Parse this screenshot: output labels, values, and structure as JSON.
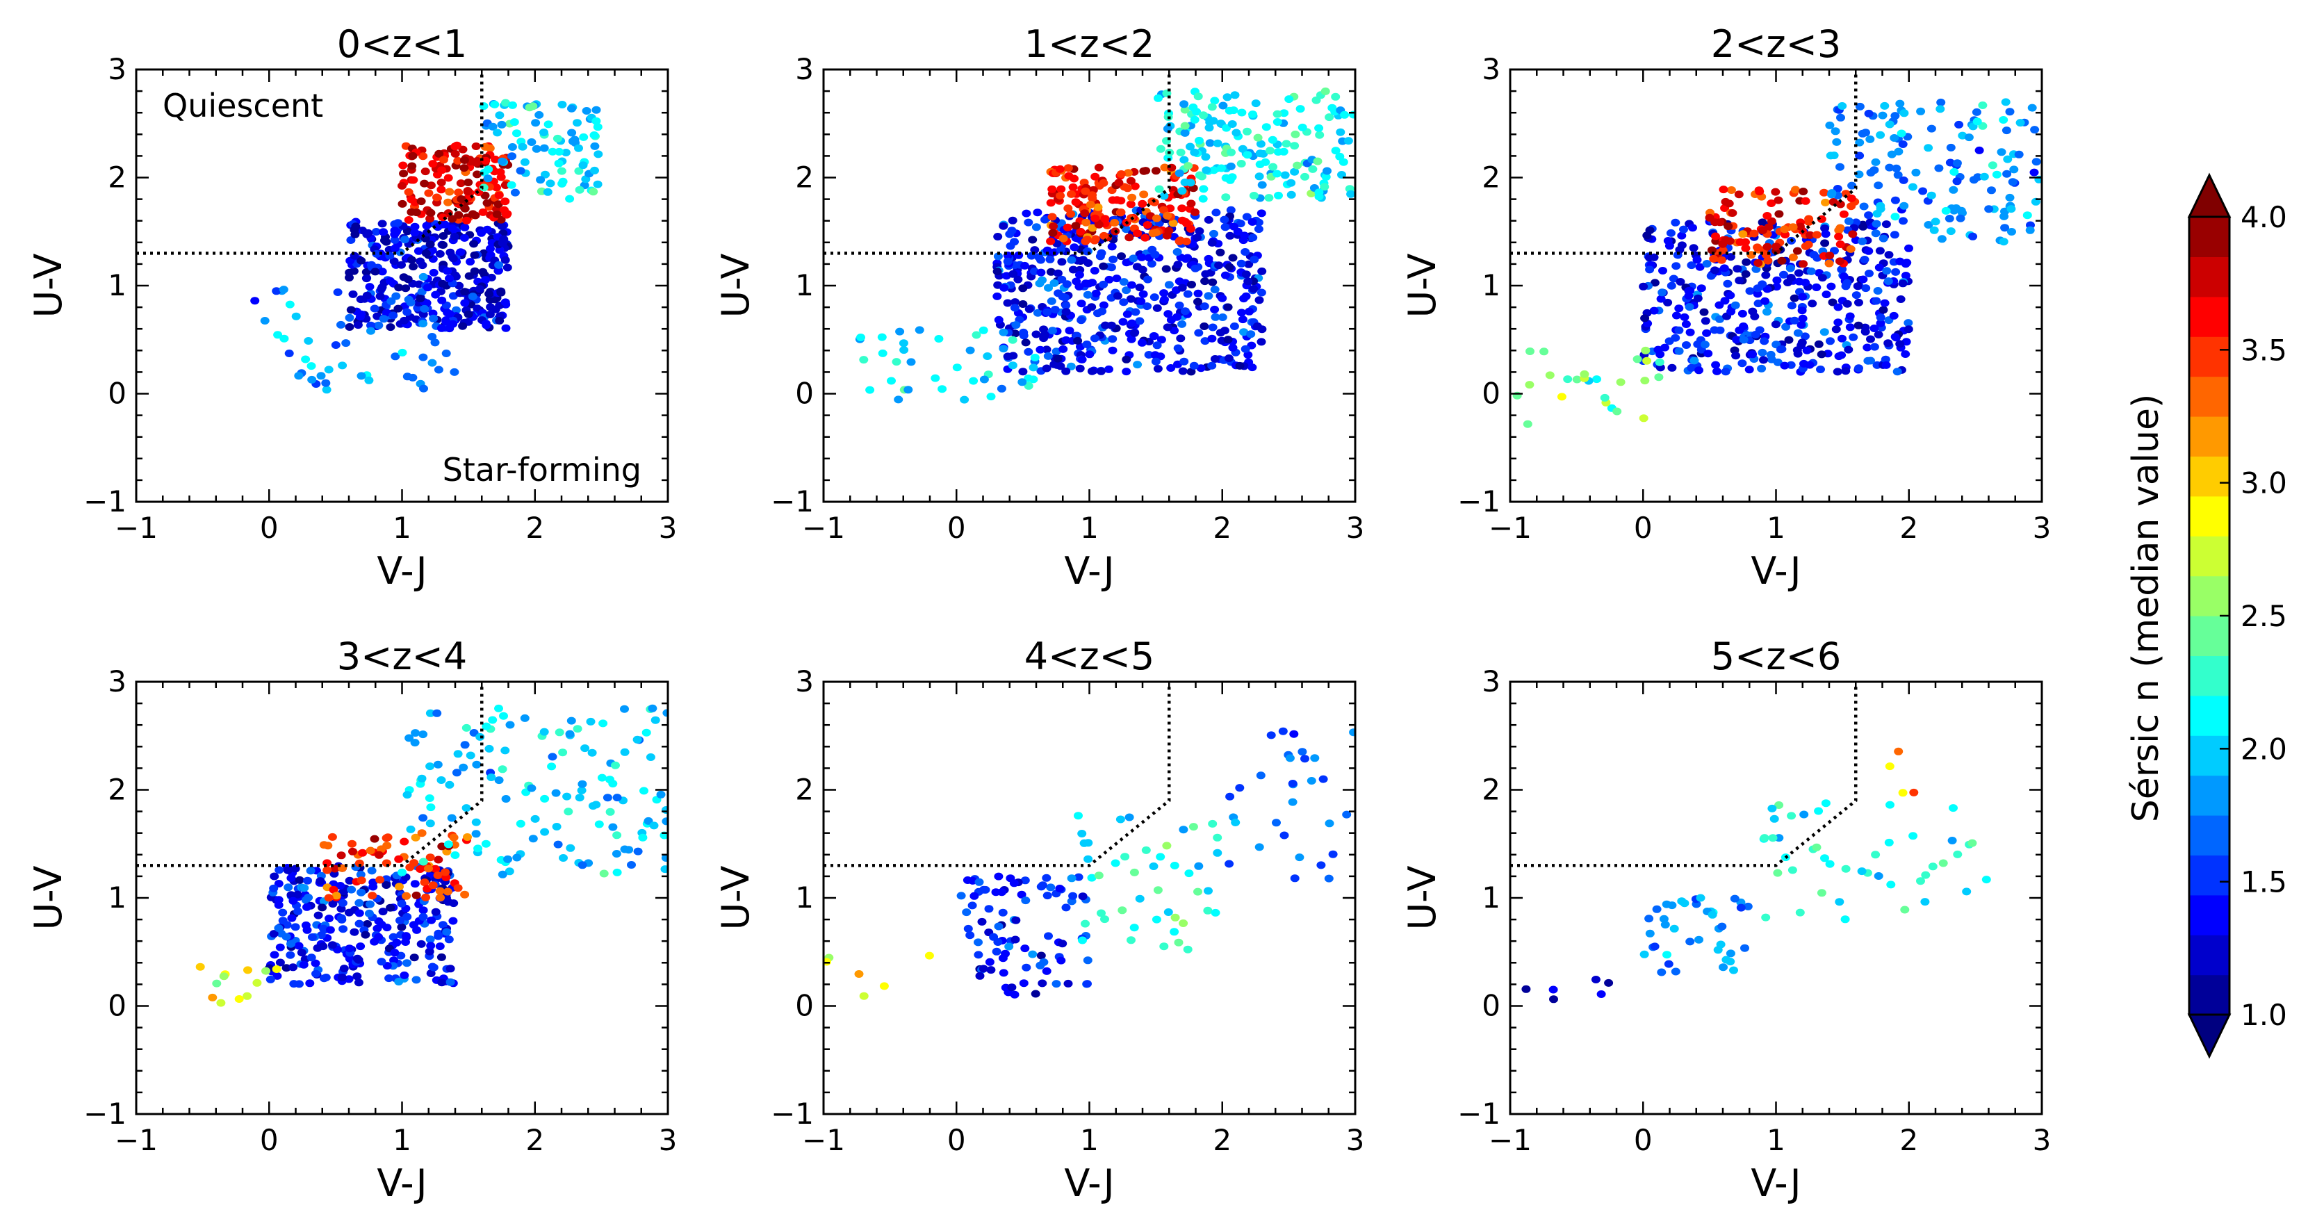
{
  "figure": {
    "colorbar": {
      "label": "Sérsic n (median value)",
      "min": 1.0,
      "max": 4.0,
      "ticks": [
        "1.0",
        "1.5",
        "2.0",
        "2.5",
        "3.0",
        "3.5",
        "4.0"
      ],
      "tick_values": [
        1.0,
        1.5,
        2.0,
        2.5,
        3.0,
        3.5,
        4.0
      ],
      "levels": 20,
      "colormap": "jet",
      "extend": "both"
    }
  },
  "chart_data": [
    {
      "type": "scatter",
      "title": "0<z<1",
      "xlabel": "V-J",
      "ylabel": "U-V",
      "xlim": [
        -1,
        3
      ],
      "ylim": [
        -1,
        3
      ],
      "xticks": [
        "−1",
        "0",
        "1",
        "2",
        "3"
      ],
      "yticks": [
        "−1",
        "0",
        "1",
        "2",
        "3"
      ],
      "annotations": [
        "Quiescent",
        "Star-forming"
      ],
      "selection_box": {
        "x_cut": 1.6,
        "y_cut": 1.3
      },
      "description": "hexbin colored by median Sérsic n",
      "regions": [
        {
          "x": [
            0.6,
            1.8
          ],
          "y": [
            0.6,
            1.6
          ],
          "n_center": 1.3,
          "count": 360
        },
        {
          "x": [
            1.0,
            1.8
          ],
          "y": [
            1.6,
            2.3
          ],
          "n_center": 3.7,
          "count": 150
        },
        {
          "x": [
            1.6,
            2.5
          ],
          "y": [
            1.8,
            2.7
          ],
          "n_center": 2.0,
          "count": 90
        },
        {
          "x": [
            -0.2,
            1.4
          ],
          "y": [
            0.0,
            1.0
          ],
          "n_center": 1.8,
          "count": 50
        }
      ]
    },
    {
      "type": "scatter",
      "title": "1<z<2",
      "xlabel": "V-J",
      "ylabel": "U-V",
      "xlim": [
        -1,
        3
      ],
      "ylim": [
        -1,
        3
      ],
      "xticks": [
        "−1",
        "0",
        "1",
        "2",
        "3"
      ],
      "yticks": [
        "−1",
        "0",
        "1",
        "2",
        "3"
      ],
      "annotations": [],
      "selection_box": {
        "x_cut": 1.6,
        "y_cut": 1.3
      },
      "regions": [
        {
          "x": [
            0.3,
            2.3
          ],
          "y": [
            0.2,
            1.7
          ],
          "n_center": 1.4,
          "count": 520
        },
        {
          "x": [
            0.7,
            1.8
          ],
          "y": [
            1.4,
            2.1
          ],
          "n_center": 3.6,
          "count": 170
        },
        {
          "x": [
            1.5,
            3.0
          ],
          "y": [
            1.8,
            2.8
          ],
          "n_center": 2.1,
          "count": 170
        },
        {
          "x": [
            -0.8,
            0.6
          ],
          "y": [
            -0.1,
            0.6
          ],
          "n_center": 2.0,
          "count": 40
        }
      ]
    },
    {
      "type": "scatter",
      "title": "2<z<3",
      "xlabel": "V-J",
      "ylabel": "U-V",
      "xlim": [
        -1,
        3
      ],
      "ylim": [
        -1,
        3
      ],
      "xticks": [
        "−1",
        "0",
        "1",
        "2",
        "3"
      ],
      "yticks": [
        "−1",
        "0",
        "1",
        "2",
        "3"
      ],
      "annotations": [],
      "selection_box": {
        "x_cut": 1.6,
        "y_cut": 1.3
      },
      "regions": [
        {
          "x": [
            0.0,
            2.0
          ],
          "y": [
            0.2,
            1.6
          ],
          "n_center": 1.4,
          "count": 420
        },
        {
          "x": [
            0.5,
            1.6
          ],
          "y": [
            1.2,
            1.9
          ],
          "n_center": 3.6,
          "count": 110
        },
        {
          "x": [
            1.4,
            3.0
          ],
          "y": [
            1.4,
            2.7
          ],
          "n_center": 1.8,
          "count": 150
        },
        {
          "x": [
            -1.0,
            0.2
          ],
          "y": [
            -0.3,
            0.5
          ],
          "n_center": 2.5,
          "count": 25
        }
      ]
    },
    {
      "type": "scatter",
      "title": "3<z<4",
      "xlabel": "V-J",
      "ylabel": "U-V",
      "xlim": [
        -1,
        3
      ],
      "ylim": [
        -1,
        3
      ],
      "xticks": [
        "−1",
        "0",
        "1",
        "2",
        "3"
      ],
      "yticks": [
        "−1",
        "0",
        "1",
        "2",
        "3"
      ],
      "annotations": [],
      "selection_box": {
        "x_cut": 1.6,
        "y_cut": 1.3
      },
      "regions": [
        {
          "x": [
            0.0,
            1.4
          ],
          "y": [
            0.2,
            1.3
          ],
          "n_center": 1.4,
          "count": 300
        },
        {
          "x": [
            0.4,
            1.5
          ],
          "y": [
            1.0,
            1.6
          ],
          "n_center": 3.5,
          "count": 70
        },
        {
          "x": [
            1.0,
            3.0
          ],
          "y": [
            1.2,
            2.8
          ],
          "n_center": 2.0,
          "count": 140
        },
        {
          "x": [
            -0.6,
            0.1
          ],
          "y": [
            0.0,
            0.4
          ],
          "n_center": 2.8,
          "count": 12
        }
      ]
    },
    {
      "type": "scatter",
      "title": "4<z<5",
      "xlabel": "V-J",
      "ylabel": "U-V",
      "xlim": [
        -1,
        3
      ],
      "ylim": [
        -1,
        3
      ],
      "xticks": [
        "−1",
        "0",
        "1",
        "2",
        "3"
      ],
      "yticks": [
        "−1",
        "0",
        "1",
        "2",
        "3"
      ],
      "annotations": [],
      "selection_box": {
        "x_cut": 1.6,
        "y_cut": 1.3
      },
      "regions": [
        {
          "x": [
            0.0,
            1.0
          ],
          "y": [
            0.1,
            1.2
          ],
          "n_center": 1.5,
          "count": 90
        },
        {
          "x": [
            0.8,
            2.0
          ],
          "y": [
            0.5,
            1.8
          ],
          "n_center": 2.2,
          "count": 45
        },
        {
          "x": [
            2.0,
            3.0
          ],
          "y": [
            1.1,
            2.9
          ],
          "n_center": 1.7,
          "count": 30
        },
        {
          "x": [
            -1.0,
            -0.2
          ],
          "y": [
            0.0,
            0.5
          ],
          "n_center": 2.8,
          "count": 6
        }
      ]
    },
    {
      "type": "scatter",
      "title": "5<z<6",
      "xlabel": "V-J",
      "ylabel": "U-V",
      "xlim": [
        -1,
        3
      ],
      "ylim": [
        -1,
        3
      ],
      "xticks": [
        "−1",
        "0",
        "1",
        "2",
        "3"
      ],
      "yticks": [
        "−1",
        "0",
        "1",
        "2",
        "3"
      ],
      "annotations": [],
      "selection_box": {
        "x_cut": 1.6,
        "y_cut": 1.3
      },
      "regions": [
        {
          "x": [
            0.0,
            0.9
          ],
          "y": [
            0.3,
            1.0
          ],
          "n_center": 1.8,
          "count": 40
        },
        {
          "x": [
            0.9,
            2.6
          ],
          "y": [
            0.8,
            1.9
          ],
          "n_center": 2.2,
          "count": 45
        },
        {
          "x": [
            1.8,
            2.1
          ],
          "y": [
            1.9,
            2.4
          ],
          "n_center": 3.0,
          "count": 4
        },
        {
          "x": [
            -1.0,
            -0.2
          ],
          "y": [
            0.0,
            0.3
          ],
          "n_center": 1.2,
          "count": 6
        }
      ]
    }
  ]
}
